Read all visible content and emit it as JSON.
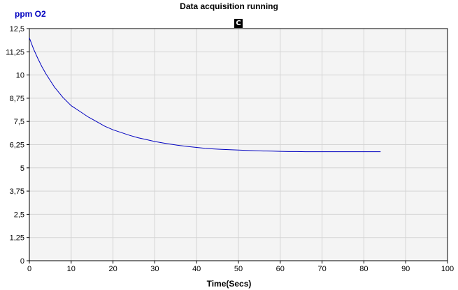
{
  "chart_data": {
    "type": "line",
    "title": "Data acquisition running",
    "status_badge": "C",
    "ylabel": "ppm O2",
    "xlabel": "Time(Secs)",
    "xlim": [
      0,
      100
    ],
    "ylim": [
      0,
      12.5
    ],
    "x_ticks": [
      "0",
      "10",
      "20",
      "30",
      "40",
      "50",
      "60",
      "70",
      "80",
      "90",
      "100"
    ],
    "y_ticks": [
      "0",
      "1,25",
      "2,5",
      "3,75",
      "5",
      "6,25",
      "7,5",
      "8,75",
      "10",
      "11,25",
      "12,5"
    ],
    "grid": true,
    "series": [
      {
        "color": "#0000c0",
        "x": [
          0,
          1,
          2,
          3,
          4,
          5,
          6,
          8,
          10,
          12,
          14,
          16,
          18,
          20,
          22,
          24,
          26,
          28,
          30,
          32,
          34,
          36,
          38,
          40,
          42,
          44,
          46,
          48,
          50,
          52,
          54,
          56,
          58,
          60,
          62,
          64,
          66,
          68,
          70,
          72,
          74,
          76,
          78,
          80,
          82,
          84
        ],
        "y": [
          12.0,
          11.4,
          10.9,
          10.45,
          10.05,
          9.7,
          9.35,
          8.8,
          8.35,
          8.05,
          7.75,
          7.5,
          7.25,
          7.05,
          6.9,
          6.75,
          6.62,
          6.52,
          6.42,
          6.34,
          6.27,
          6.2,
          6.15,
          6.1,
          6.05,
          6.02,
          6.0,
          5.98,
          5.96,
          5.94,
          5.92,
          5.91,
          5.9,
          5.89,
          5.88,
          5.88,
          5.87,
          5.87,
          5.87,
          5.87,
          5.87,
          5.87,
          5.87,
          5.87,
          5.87,
          5.87
        ]
      }
    ]
  }
}
